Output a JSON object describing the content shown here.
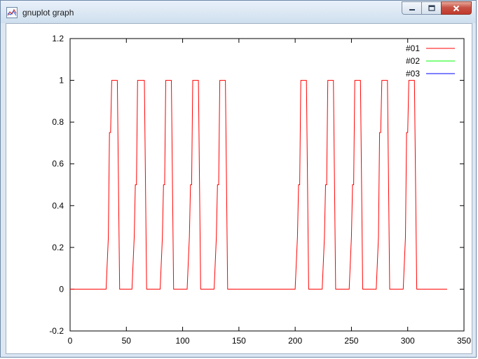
{
  "window": {
    "title": "gnuplot graph",
    "icon": "gnuplot-graph-icon"
  },
  "controls": [
    "minimize",
    "maximize",
    "close"
  ],
  "chart_data": {
    "type": "line",
    "xlim": [
      0,
      350
    ],
    "ylim": [
      -0.2,
      1.2
    ],
    "x_ticks": [
      0,
      50,
      100,
      150,
      200,
      250,
      300,
      350
    ],
    "y_ticks": [
      -0.2,
      0,
      0.2,
      0.4,
      0.6,
      0.8,
      1,
      1.2
    ],
    "y_tick_labels": [
      "-0.2",
      "0",
      "0.2",
      "0.4",
      "0.6",
      "0.8",
      "1",
      "1.2"
    ],
    "grid": false,
    "legend_position": "top-right",
    "series": [
      {
        "name": "#01",
        "color": "#ff0000",
        "x": [
          0,
          32,
          34,
          35,
          36,
          37,
          42,
          44,
          55,
          57,
          58,
          59,
          60,
          66,
          68,
          80,
          82,
          83,
          84,
          85,
          90,
          92,
          104,
          106,
          107,
          108,
          109,
          114,
          116,
          128,
          130,
          131,
          132,
          133,
          138,
          140,
          200,
          202,
          203,
          204,
          205,
          210,
          212,
          224,
          226,
          227,
          228,
          229,
          234,
          236,
          248,
          250,
          251,
          252,
          253,
          258,
          260,
          272,
          274,
          275,
          276,
          277,
          282,
          284,
          296,
          298,
          299,
          300,
          301,
          306,
          308,
          335
        ],
        "y": [
          0,
          0,
          0.25,
          0.75,
          0.75,
          1,
          1,
          0,
          0,
          0.25,
          0.5,
          0.5,
          1,
          1,
          0,
          0,
          0.25,
          0.5,
          0.5,
          1,
          1,
          0,
          0,
          0.25,
          0.5,
          0.5,
          1,
          1,
          0,
          0,
          0.25,
          0.5,
          0.5,
          1,
          1,
          0,
          0,
          0.25,
          0.5,
          0.5,
          1,
          1,
          0,
          0,
          0.25,
          0.5,
          0.5,
          1,
          1,
          0,
          0,
          0.25,
          0.5,
          0.5,
          1,
          1,
          0,
          0,
          0.25,
          0.75,
          0.75,
          1,
          1,
          0,
          0,
          0.25,
          0.75,
          0.75,
          1,
          1,
          0,
          0
        ]
      },
      {
        "name": "#02",
        "color": "#00ff00",
        "x": [],
        "y": []
      },
      {
        "name": "#03",
        "color": "#0000ff",
        "x": [],
        "y": []
      }
    ]
  }
}
